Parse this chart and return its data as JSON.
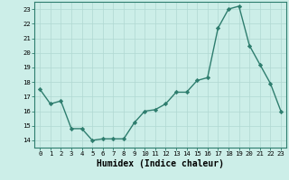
{
  "x": [
    0,
    1,
    2,
    3,
    4,
    5,
    6,
    7,
    8,
    9,
    10,
    11,
    12,
    13,
    14,
    15,
    16,
    17,
    18,
    19,
    20,
    21,
    22,
    23
  ],
  "y": [
    17.5,
    16.5,
    16.7,
    14.8,
    14.8,
    14.0,
    14.1,
    14.1,
    14.1,
    15.2,
    16.0,
    16.1,
    16.5,
    17.3,
    17.3,
    18.1,
    18.3,
    21.7,
    23.0,
    23.2,
    20.5,
    19.2,
    17.9,
    16.0
  ],
  "line_color": "#2e7d6e",
  "marker": "D",
  "marker_size": 2.2,
  "bg_color": "#cceee8",
  "grid_color": "#b0d8d2",
  "xlabel": "Humidex (Indice chaleur)",
  "ylabel": "",
  "xlim": [
    -0.5,
    23.5
  ],
  "ylim": [
    13.5,
    23.5
  ],
  "yticks": [
    14,
    15,
    16,
    17,
    18,
    19,
    20,
    21,
    22,
    23
  ],
  "xticks": [
    0,
    1,
    2,
    3,
    4,
    5,
    6,
    7,
    8,
    9,
    10,
    11,
    12,
    13,
    14,
    15,
    16,
    17,
    18,
    19,
    20,
    21,
    22,
    23
  ],
  "tick_fontsize": 5.2,
  "xlabel_fontsize": 7.0,
  "spine_color": "#2e7d6e",
  "line_width": 1.0
}
